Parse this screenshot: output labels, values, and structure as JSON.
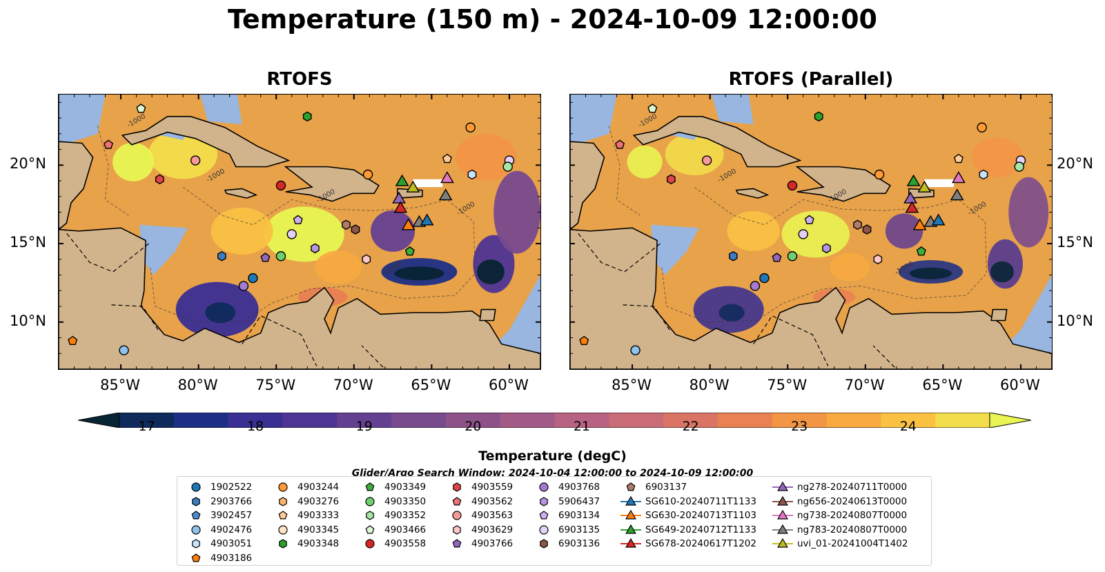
{
  "title": "Temperature (150 m) - 2024-10-09 12:00:00",
  "panels": [
    {
      "title": "RTOFS"
    },
    {
      "title": "RTOFS (Parallel)"
    }
  ],
  "axes": {
    "lon_ticks": [
      "85°W",
      "80°W",
      "75°W",
      "70°W",
      "65°W",
      "60°W"
    ],
    "lon_values": [
      -85,
      -80,
      -75,
      -70,
      -65,
      -60
    ],
    "lat_ticks": [
      "20°N",
      "15°N",
      "10°N"
    ],
    "lat_values": [
      20,
      15,
      10
    ],
    "lon_range": [
      -89,
      -58
    ],
    "lat_range": [
      7,
      24.5
    ]
  },
  "colorbar": {
    "label": "Temperature (degC)",
    "ticks": [
      "17",
      "18",
      "19",
      "20",
      "21",
      "22",
      "23",
      "24"
    ],
    "range": [
      16.5,
      24.75
    ],
    "colors": [
      "#072433",
      "#0f2b5c",
      "#1d2f85",
      "#3a2f92",
      "#4e3593",
      "#644090",
      "#784a8e",
      "#8d5388",
      "#a25b86",
      "#b86381",
      "#c96c77",
      "#da7566",
      "#e98153",
      "#f29545",
      "#f8aa40",
      "#fac143",
      "#f2dd4a",
      "#e8f552"
    ]
  },
  "search_window": "Glider/Argo Search Window: 2024-10-04 12:00:00 to 2024-10-09 12:00:00",
  "contour_labels": [
    "-1000",
    "-1000",
    "-1000",
    "-1000",
    "-1000"
  ],
  "legend": {
    "columns": [
      [
        {
          "label": "1902522",
          "marker": "circle",
          "color": "#1f77b4"
        },
        {
          "label": "2903766",
          "marker": "hexagon",
          "color": "#3d7cc0"
        },
        {
          "label": "3902457",
          "marker": "pentagon",
          "color": "#4a8fd0"
        },
        {
          "label": "4902476",
          "marker": "circle",
          "color": "#8fc3ec"
        },
        {
          "label": "4903051",
          "marker": "hexagon",
          "color": "#c6e4fb"
        },
        {
          "label": "4903186",
          "marker": "pentagon",
          "color": "#ff7f0e"
        }
      ],
      [
        {
          "label": "4903244",
          "marker": "circle",
          "color": "#ff9a35"
        },
        {
          "label": "4903276",
          "marker": "hexagon",
          "color": "#ffb26b"
        },
        {
          "label": "4903333",
          "marker": "pentagon",
          "color": "#ffcc99"
        },
        {
          "label": "4903345",
          "marker": "circle",
          "color": "#ffe3c2"
        },
        {
          "label": "4903348",
          "marker": "hexagon",
          "color": "#2ca02c"
        }
      ],
      [
        {
          "label": "4903349",
          "marker": "pentagon",
          "color": "#3bb13b"
        },
        {
          "label": "4903350",
          "marker": "circle",
          "color": "#6dcf6d"
        },
        {
          "label": "4903352",
          "marker": "hexagon",
          "color": "#a5e6a5"
        },
        {
          "label": "4903466",
          "marker": "pentagon",
          "color": "#dcf9d2"
        },
        {
          "label": "4903558",
          "marker": "circle",
          "color": "#d62728"
        }
      ],
      [
        {
          "label": "4903559",
          "marker": "hexagon",
          "color": "#e04545"
        },
        {
          "label": "4903562",
          "marker": "pentagon",
          "color": "#f07272"
        },
        {
          "label": "4903563",
          "marker": "circle",
          "color": "#f79a9a"
        },
        {
          "label": "4903629",
          "marker": "hexagon",
          "color": "#fdc7c7"
        },
        {
          "label": "4903766",
          "marker": "pentagon",
          "color": "#9467bd"
        }
      ],
      [
        {
          "label": "4903768",
          "marker": "circle",
          "color": "#a27cd0"
        },
        {
          "label": "5906437",
          "marker": "hexagon",
          "color": "#b795e0"
        },
        {
          "label": "6903134",
          "marker": "pentagon",
          "color": "#cdb2ee"
        },
        {
          "label": "6903135",
          "marker": "circle",
          "color": "#e3d2f8"
        },
        {
          "label": "6903136",
          "marker": "hexagon",
          "color": "#8c564b"
        }
      ],
      [
        {
          "label": "6903137",
          "marker": "pentagon",
          "color": "#b07b6b"
        },
        {
          "label": "SG610-20240711T1133",
          "marker": "triangle",
          "color": "#1f77b4"
        },
        {
          "label": "SG630-20240713T1103",
          "marker": "triangle",
          "color": "#ff7f0e"
        },
        {
          "label": "SG649-20240712T1133",
          "marker": "triangle",
          "color": "#2ca02c"
        },
        {
          "label": "SG678-20240617T1202",
          "marker": "triangle",
          "color": "#d62728"
        }
      ],
      [
        {
          "label": "ng278-20240711T0000",
          "marker": "triangle",
          "color": "#9467bd"
        },
        {
          "label": "ng656-20240613T0000",
          "marker": "triangle",
          "color": "#8c564b"
        },
        {
          "label": "ng738-20240807T0000",
          "marker": "triangle",
          "color": "#e377c2"
        },
        {
          "label": "ng783-20240807T0000",
          "marker": "triangle",
          "color": "#7f7f7f"
        },
        {
          "label": "uvi_01-20241004T1402",
          "marker": "triangle",
          "color": "#bcbd22"
        }
      ]
    ]
  },
  "markers": [
    {
      "lon": -83.7,
      "lat": 23.6,
      "marker": "pentagon",
      "color": "#dcf9d2"
    },
    {
      "lon": -85.8,
      "lat": 21.3,
      "marker": "pentagon",
      "color": "#f07272"
    },
    {
      "lon": -80.2,
      "lat": 20.3,
      "marker": "circle",
      "color": "#f79a9a"
    },
    {
      "lon": -82.5,
      "lat": 19.1,
      "marker": "hexagon",
      "color": "#e04545"
    },
    {
      "lon": -74.7,
      "lat": 18.7,
      "marker": "circle",
      "color": "#d62728"
    },
    {
      "lon": -73.0,
      "lat": 23.1,
      "marker": "hexagon",
      "color": "#2ca02c"
    },
    {
      "lon": -69.1,
      "lat": 19.4,
      "marker": "circle",
      "color": "#ff9a35"
    },
    {
      "lon": -62.5,
      "lat": 22.4,
      "marker": "circle",
      "color": "#ff9a35"
    },
    {
      "lon": -64.0,
      "lat": 20.4,
      "marker": "pentagon",
      "color": "#ffcc99"
    },
    {
      "lon": -62.4,
      "lat": 19.4,
      "marker": "hexagon",
      "color": "#c6e4fb"
    },
    {
      "lon": -60.0,
      "lat": 20.3,
      "marker": "circle",
      "color": "#e3d2f8"
    },
    {
      "lon": -60.1,
      "lat": 19.9,
      "marker": "circle",
      "color": "#a5e6a5"
    },
    {
      "lon": -73.6,
      "lat": 16.5,
      "marker": "pentagon",
      "color": "#cdb2ee"
    },
    {
      "lon": -74.0,
      "lat": 15.6,
      "marker": "circle",
      "color": "#e3d2f8"
    },
    {
      "lon": -72.5,
      "lat": 14.7,
      "marker": "hexagon",
      "color": "#b795e0"
    },
    {
      "lon": -70.5,
      "lat": 16.2,
      "marker": "hexagon",
      "color": "#b07b6b"
    },
    {
      "lon": -69.9,
      "lat": 15.9,
      "marker": "hexagon",
      "color": "#8c564b"
    },
    {
      "lon": -69.2,
      "lat": 14.0,
      "marker": "hexagon",
      "color": "#fdc7c7"
    },
    {
      "lon": -74.7,
      "lat": 14.2,
      "marker": "circle",
      "color": "#6dcf6d"
    },
    {
      "lon": -75.7,
      "lat": 14.1,
      "marker": "pentagon",
      "color": "#9467bd"
    },
    {
      "lon": -78.5,
      "lat": 14.2,
      "marker": "hexagon",
      "color": "#3d7cc0"
    },
    {
      "lon": -76.5,
      "lat": 12.8,
      "marker": "circle",
      "color": "#1f77b4"
    },
    {
      "lon": -77.1,
      "lat": 12.3,
      "marker": "circle",
      "color": "#a27cd0"
    },
    {
      "lon": -66.4,
      "lat": 14.5,
      "marker": "pentagon",
      "color": "#3bb13b"
    },
    {
      "lon": -88.1,
      "lat": 8.8,
      "marker": "pentagon",
      "color": "#ff7f0e"
    },
    {
      "lon": -84.8,
      "lat": 8.2,
      "marker": "circle",
      "color": "#8fc3ec"
    },
    {
      "lon": -66.9,
      "lat": 19.0,
      "marker": "triangle",
      "color": "#2ca02c"
    },
    {
      "lon": -66.2,
      "lat": 18.6,
      "marker": "triangle",
      "color": "#bcbd22"
    },
    {
      "lon": -67.1,
      "lat": 17.9,
      "marker": "triangle",
      "color": "#9467bd"
    },
    {
      "lon": -67.0,
      "lat": 17.3,
      "marker": "triangle",
      "color": "#d62728"
    },
    {
      "lon": -66.5,
      "lat": 16.2,
      "marker": "triangle",
      "color": "#ff7f0e"
    },
    {
      "lon": -65.8,
      "lat": 16.4,
      "marker": "triangle",
      "color": "#7f7f7f"
    },
    {
      "lon": -65.3,
      "lat": 16.5,
      "marker": "triangle",
      "color": "#1f77b4"
    },
    {
      "lon": -64.0,
      "lat": 19.2,
      "marker": "triangle",
      "color": "#e377c2"
    },
    {
      "lon": -64.1,
      "lat": 18.1,
      "marker": "triangle",
      "color": "#7f7f7f"
    }
  ]
}
